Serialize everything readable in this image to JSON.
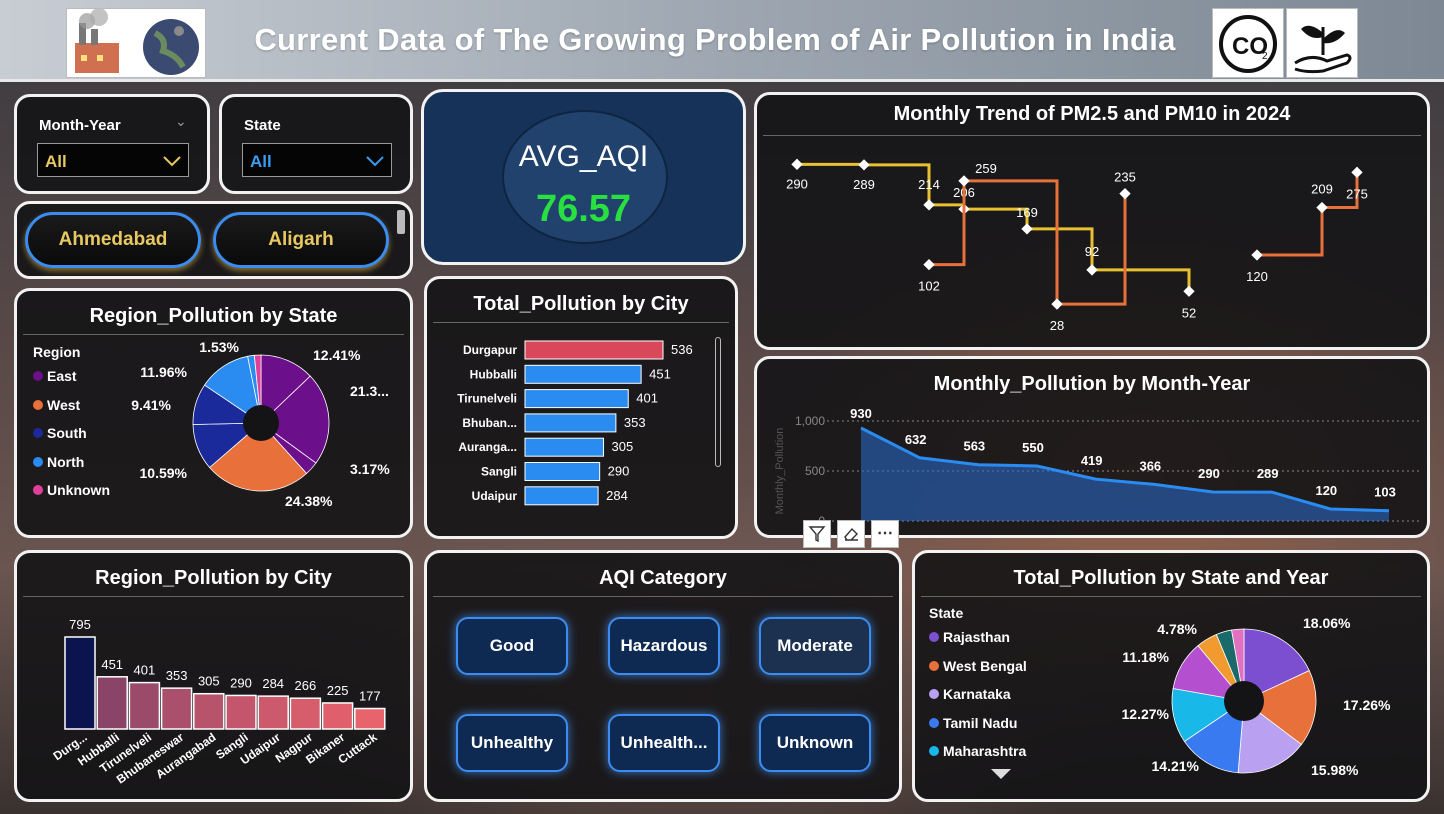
{
  "header": {
    "title": "Current Data of The Growing Problem of Air Pollution in India",
    "co2_logo_text": "CO",
    "co2_logo_sub": "2"
  },
  "filters": {
    "month_year": {
      "label": "Month-Year",
      "value": "All"
    },
    "state": {
      "label": "State",
      "value": "All"
    }
  },
  "city_buttons": [
    "Ahmedabad",
    "Aligarh"
  ],
  "kpi": {
    "label": "AVG_AQI",
    "value": "76.57"
  },
  "region_by_state": {
    "title": "Region_Pollution by State",
    "legend_title": "Region",
    "legend": [
      {
        "label": "East",
        "color": "#6b0f8a"
      },
      {
        "label": "West",
        "color": "#e8703a"
      },
      {
        "label": "South",
        "color": "#1a2a9a"
      },
      {
        "label": "North",
        "color": "#2a8cf0"
      },
      {
        "label": "Unknown",
        "color": "#e0409a"
      }
    ],
    "labels": [
      "12.41%",
      "21.3...",
      "3.17%",
      "24.38%",
      "10.59%",
      "9.41%",
      "11.96%",
      "1.53%"
    ]
  },
  "total_by_city": {
    "title": "Total_Pollution by City"
  },
  "monthly_trend": {
    "title": "Monthly Trend of PM2.5 and PM10 in 2024"
  },
  "monthly_pollution": {
    "title": "Monthly_Pollution by Month-Year",
    "ylabel": "Monthly_Pollution"
  },
  "region_by_city": {
    "title": "Region_Pollution by City"
  },
  "aqi_category": {
    "title": "AQI Category",
    "buttons": [
      "Good",
      "Hazardous",
      "Moderate",
      "Unhealthy",
      "Unhealth...",
      "Unknown"
    ]
  },
  "state_year": {
    "title": "Total_Pollution by State and Year",
    "legend_title": "State",
    "legend": [
      {
        "label": "Rajasthan",
        "color": "#7b4fd0"
      },
      {
        "label": "West Bengal",
        "color": "#e8703a"
      },
      {
        "label": "Karnataka",
        "color": "#b9a0f0"
      },
      {
        "label": "Tamil Nadu",
        "color": "#3a7af0"
      },
      {
        "label": "Maharashtra",
        "color": "#18b8e8"
      }
    ],
    "labels": [
      "18.06%",
      "17.26%",
      "15.98%",
      "14.21%",
      "12.27%",
      "11.18%",
      "4.78%"
    ]
  },
  "visual_toolbar": [
    "filter-icon",
    "eraser-icon",
    "more-options-icon"
  ],
  "chart_data": [
    {
      "type": "pie",
      "title": "Region_Pollution by State",
      "legend_title": "Region",
      "slices": [
        {
          "label": "12.41%",
          "value": 12.41,
          "color": "#6b0f8a"
        },
        {
          "label": "21.3...",
          "value": 21.3,
          "color": "#6b0f8a"
        },
        {
          "label": "3.17%",
          "value": 3.17,
          "color": "#6b0f8a"
        },
        {
          "label": "24.38%",
          "value": 24.38,
          "color": "#e8703a"
        },
        {
          "label": "10.59%",
          "value": 10.59,
          "color": "#1a2a9a"
        },
        {
          "label": "9.41%",
          "value": 9.41,
          "color": "#1a2a9a"
        },
        {
          "label": "11.96%",
          "value": 11.96,
          "color": "#2a8cf0"
        },
        {
          "label": "1.53%",
          "value": 1.53,
          "color": "#2a8cf0"
        },
        {
          "label": "",
          "value": 1.5,
          "color": "#e0409a"
        }
      ]
    },
    {
      "type": "bar",
      "orientation": "horizontal",
      "title": "Total_Pollution by City",
      "categories": [
        "Durgapur",
        "Hubballi",
        "Tirunelveli",
        "Bhuban...",
        "Auranga...",
        "Sangli",
        "Udaipur"
      ],
      "values": [
        536,
        451,
        401,
        353,
        305,
        290,
        284
      ],
      "xlim": [
        0,
        536
      ],
      "highlight_color": "#d9485a",
      "bar_color": "#2a8cf0"
    },
    {
      "type": "line",
      "title": "Monthly Trend of PM2.5 and PM10 in 2024",
      "series": [
        {
          "color": "#e8c030",
          "values": [
            290,
            289,
            214,
            206,
            169,
            92,
            52
          ]
        },
        {
          "color": "#e8703a",
          "values": [
            102,
            259,
            28,
            235
          ]
        },
        {
          "color": "#e8703a",
          "values": [
            120,
            209,
            275
          ]
        }
      ]
    },
    {
      "type": "area",
      "title": "Monthly_Pollution by Month-Year",
      "ylabel": "Monthly_Pollution",
      "yticks": [
        "1,000",
        "500",
        "0"
      ],
      "ylim": [
        0,
        1000
      ],
      "values": [
        930,
        632,
        563,
        550,
        419,
        366,
        290,
        289,
        120,
        103
      ],
      "data_labels": [
        "930",
        "632",
        "563",
        "550",
        "419",
        "366",
        "290",
        "289",
        "120",
        "103"
      ]
    },
    {
      "type": "bar",
      "title": "Region_Pollution by City",
      "categories": [
        "Durg...",
        "Hubballi",
        "Tirunelveli",
        "Bhubaneswar",
        "Aurangabad",
        "Sangli",
        "Udaipur",
        "Nagpur",
        "Bikaner",
        "Cuttack"
      ],
      "values": [
        795,
        451,
        401,
        353,
        305,
        290,
        284,
        266,
        225,
        177
      ],
      "ylim": [
        0,
        795
      ],
      "colors": [
        "#0c1450",
        "#8a4468",
        "#9c4a6a",
        "#aa4f6c",
        "#b8536c",
        "#c3566c",
        "#cd5a6c",
        "#d65d6c",
        "#df606c",
        "#e8646c"
      ]
    },
    {
      "type": "pie",
      "title": "Total_Pollution by State and Year",
      "legend_title": "State",
      "slices": [
        {
          "label": "18.06%",
          "value": 18.06,
          "color": "#7b4fd0"
        },
        {
          "label": "17.26%",
          "value": 17.26,
          "color": "#e8703a"
        },
        {
          "label": "15.98%",
          "value": 15.98,
          "color": "#b9a0f0"
        },
        {
          "label": "14.21%",
          "value": 14.21,
          "color": "#3a7af0"
        },
        {
          "label": "12.27%",
          "value": 12.27,
          "color": "#18b8e8"
        },
        {
          "label": "11.18%",
          "value": 11.18,
          "color": "#b44fd0"
        },
        {
          "label": "4.78%",
          "value": 4.78,
          "color": "#f09a30"
        },
        {
          "label": "",
          "value": 3.5,
          "color": "#1a6a6a"
        },
        {
          "label": "",
          "value": 2.76,
          "color": "#e070c0"
        }
      ]
    }
  ]
}
